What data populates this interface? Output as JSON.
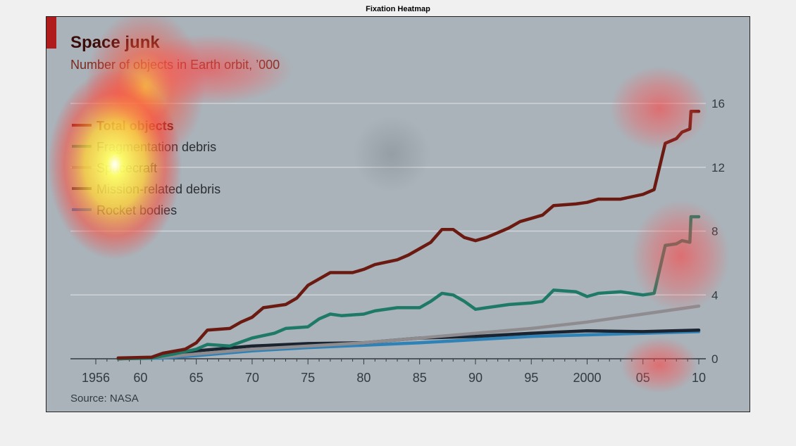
{
  "figure_title": "Fixation Heatmap",
  "chart_data": {
    "type": "line",
    "title": "Space junk",
    "subtitle": "Number of objects in Earth orbit, ’000",
    "source": "Source: NASA",
    "ylim": [
      0,
      16
    ],
    "yticks": [
      0,
      4,
      8,
      12,
      16
    ],
    "xlim": [
      1956,
      2010
    ],
    "xticks": [
      1956,
      1960,
      1965,
      1970,
      1975,
      1980,
      1985,
      1990,
      1995,
      2000,
      2005,
      2010
    ],
    "xtick_labels": [
      "1956",
      "60",
      "65",
      "70",
      "75",
      "80",
      "85",
      "90",
      "95",
      "2000",
      "05",
      "10"
    ],
    "grid": true,
    "legend_position": "top-left",
    "series": [
      {
        "name": "Total objects",
        "color": "#6b1a12",
        "points": [
          [
            1958,
            0.05
          ],
          [
            1961,
            0.1
          ],
          [
            1962,
            0.35
          ],
          [
            1964,
            0.6
          ],
          [
            1965,
            1.0
          ],
          [
            1966,
            1.8
          ],
          [
            1968,
            1.9
          ],
          [
            1969,
            2.3
          ],
          [
            1970,
            2.6
          ],
          [
            1971,
            3.2
          ],
          [
            1973,
            3.4
          ],
          [
            1974,
            3.8
          ],
          [
            1975,
            4.6
          ],
          [
            1976,
            5.0
          ],
          [
            1977,
            5.4
          ],
          [
            1979,
            5.4
          ],
          [
            1980,
            5.6
          ],
          [
            1981,
            5.9
          ],
          [
            1983,
            6.2
          ],
          [
            1984,
            6.5
          ],
          [
            1985,
            6.9
          ],
          [
            1986,
            7.3
          ],
          [
            1987,
            8.1
          ],
          [
            1988,
            8.1
          ],
          [
            1989,
            7.6
          ],
          [
            1990,
            7.4
          ],
          [
            1991,
            7.6
          ],
          [
            1992,
            7.9
          ],
          [
            1993,
            8.2
          ],
          [
            1994,
            8.6
          ],
          [
            1995,
            8.8
          ],
          [
            1996,
            9.0
          ],
          [
            1997,
            9.6
          ],
          [
            1999,
            9.7
          ],
          [
            2000,
            9.8
          ],
          [
            2001,
            10.0
          ],
          [
            2003,
            10.0
          ],
          [
            2005,
            10.3
          ],
          [
            2006,
            10.6
          ],
          [
            2007,
            13.5
          ],
          [
            2008,
            13.8
          ],
          [
            2008.5,
            14.2
          ],
          [
            2009.2,
            14.4
          ],
          [
            2009.3,
            15.5
          ],
          [
            2010,
            15.5
          ]
        ]
      },
      {
        "name": "Fragmentation debris",
        "color": "#1e7a66",
        "points": [
          [
            1958,
            0.0
          ],
          [
            1961,
            0.05
          ],
          [
            1963,
            0.3
          ],
          [
            1965,
            0.6
          ],
          [
            1966,
            0.9
          ],
          [
            1968,
            0.8
          ],
          [
            1970,
            1.3
          ],
          [
            1972,
            1.6
          ],
          [
            1973,
            1.9
          ],
          [
            1975,
            2.0
          ],
          [
            1976,
            2.5
          ],
          [
            1977,
            2.8
          ],
          [
            1978,
            2.7
          ],
          [
            1980,
            2.8
          ],
          [
            1981,
            3.0
          ],
          [
            1983,
            3.2
          ],
          [
            1985,
            3.2
          ],
          [
            1986,
            3.6
          ],
          [
            1987,
            4.1
          ],
          [
            1988,
            4.0
          ],
          [
            1989,
            3.6
          ],
          [
            1990,
            3.1
          ],
          [
            1991,
            3.2
          ],
          [
            1993,
            3.4
          ],
          [
            1995,
            3.5
          ],
          [
            1996,
            3.6
          ],
          [
            1997,
            4.3
          ],
          [
            1999,
            4.2
          ],
          [
            2000,
            3.9
          ],
          [
            2001,
            4.1
          ],
          [
            2003,
            4.2
          ],
          [
            2005,
            4.0
          ],
          [
            2006,
            4.1
          ],
          [
            2007,
            7.1
          ],
          [
            2008,
            7.2
          ],
          [
            2008.5,
            7.4
          ],
          [
            2009.2,
            7.3
          ],
          [
            2009.3,
            8.9
          ],
          [
            2010,
            8.9
          ]
        ]
      },
      {
        "name": "Spacecraft",
        "color": "#8f8c90",
        "points": [
          [
            1958,
            0.0
          ],
          [
            1962,
            0.1
          ],
          [
            1965,
            0.3
          ],
          [
            1970,
            0.6
          ],
          [
            1975,
            0.8
          ],
          [
            1980,
            1.0
          ],
          [
            1985,
            1.3
          ],
          [
            1990,
            1.6
          ],
          [
            1995,
            1.9
          ],
          [
            2000,
            2.3
          ],
          [
            2005,
            2.8
          ],
          [
            2010,
            3.3
          ]
        ]
      },
      {
        "name": "Mission-related debris",
        "color": "#1a2430",
        "points": [
          [
            1958,
            0.0
          ],
          [
            1962,
            0.1
          ],
          [
            1965,
            0.5
          ],
          [
            1970,
            0.8
          ],
          [
            1975,
            0.95
          ],
          [
            1980,
            1.0
          ],
          [
            1985,
            1.3
          ],
          [
            1990,
            1.4
          ],
          [
            1995,
            1.6
          ],
          [
            2000,
            1.75
          ],
          [
            2005,
            1.7
          ],
          [
            2010,
            1.8
          ]
        ]
      },
      {
        "name": "Rocket bodies",
        "color": "#2f82b6",
        "points": [
          [
            1958,
            0.0
          ],
          [
            1962,
            0.05
          ],
          [
            1965,
            0.2
          ],
          [
            1970,
            0.5
          ],
          [
            1975,
            0.7
          ],
          [
            1980,
            0.85
          ],
          [
            1985,
            1.0
          ],
          [
            1990,
            1.2
          ],
          [
            1995,
            1.4
          ],
          [
            2000,
            1.5
          ],
          [
            2005,
            1.6
          ],
          [
            2010,
            1.7
          ]
        ]
      }
    ]
  },
  "colors": {
    "panel_background": "#aab3ba",
    "accent": "#b01c1c",
    "title_color": "#3a0d0a",
    "subtitle_color": "#7a2a1e",
    "grid": "#cfd4d8",
    "axis_text": "#333a40"
  }
}
